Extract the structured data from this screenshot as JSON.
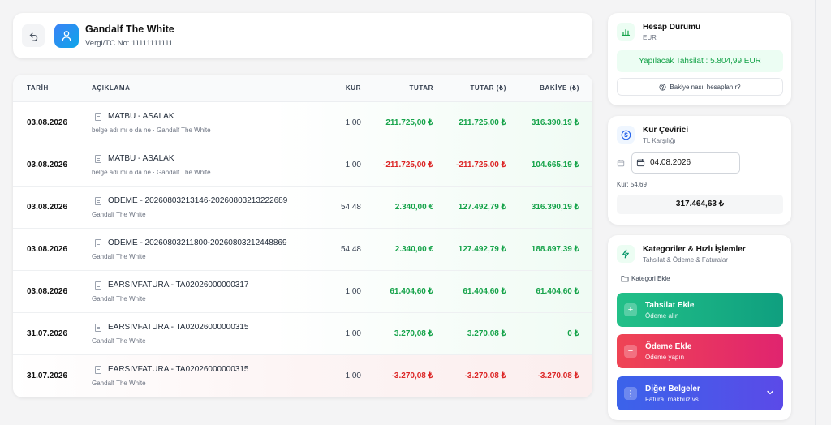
{
  "customer": {
    "name": "Gandalf The White",
    "tax_label": "Vergi/TC No: 11111111111"
  },
  "table": {
    "headers": [
      "TARİH",
      "AÇIKLAMA",
      "KUR",
      "TUTAR",
      "TUTAR (₺)",
      "BAKİYE (₺)"
    ],
    "rows": [
      {
        "date": "03.08.2026",
        "title": "MATBU - ASALAK",
        "sub": "belge adı mı o da ne · Gandalf The White",
        "kur": "1,00",
        "tutar": "211.725,00 ₺",
        "tutar_tl": "211.725,00 ₺",
        "bakiye": "316.390,19 ₺",
        "sign": "pos",
        "bakiye_sign": "pos"
      },
      {
        "date": "03.08.2026",
        "title": "MATBU - ASALAK",
        "sub": "belge adı mı o da ne · Gandalf The White",
        "kur": "1,00",
        "tutar": "-211.725,00 ₺",
        "tutar_tl": "-211.725,00 ₺",
        "bakiye": "104.665,19 ₺",
        "sign": "neg",
        "bakiye_sign": "pos"
      },
      {
        "date": "03.08.2026",
        "title": "ODEME - 20260803213146-20260803213222689",
        "sub": "Gandalf The White",
        "kur": "54,48",
        "tutar": "2.340,00 €",
        "tutar_tl": "127.492,79 ₺",
        "bakiye": "316.390,19 ₺",
        "sign": "pos",
        "bakiye_sign": "pos"
      },
      {
        "date": "03.08.2026",
        "title": "ODEME - 20260803211800-20260803212448869",
        "sub": "Gandalf The White",
        "kur": "54,48",
        "tutar": "2.340,00 €",
        "tutar_tl": "127.492,79 ₺",
        "bakiye": "188.897,39 ₺",
        "sign": "pos",
        "bakiye_sign": "pos"
      },
      {
        "date": "03.08.2026",
        "title": "EARSIVFATURA - TA02026000000317",
        "sub": "Gandalf The White",
        "kur": "1,00",
        "tutar": "61.404,60 ₺",
        "tutar_tl": "61.404,60 ₺",
        "bakiye": "61.404,60 ₺",
        "sign": "pos",
        "bakiye_sign": "pos"
      },
      {
        "date": "31.07.2026",
        "title": "EARSIVFATURA - TA02026000000315",
        "sub": "Gandalf The White",
        "kur": "1,00",
        "tutar": "3.270,08 ₺",
        "tutar_tl": "3.270,08 ₺",
        "bakiye": "0 ₺",
        "sign": "pos",
        "bakiye_sign": "pos"
      },
      {
        "date": "31.07.2026",
        "title": "EARSIVFATURA - TA02026000000315",
        "sub": "Gandalf The White",
        "kur": "1,00",
        "tutar": "-3.270,08 ₺",
        "tutar_tl": "-3.270,08 ₺",
        "bakiye": "-3.270,08 ₺",
        "sign": "neg",
        "bakiye_sign": "neg"
      }
    ]
  },
  "account": {
    "title": "Hesap Durumu",
    "currency": "EUR",
    "tahsilat": "Yapılacak Tahsilat : 5.804,99 EUR",
    "how_label": "Bakiye nasıl hesaplanır?"
  },
  "converter": {
    "title": "Kur Çevirici",
    "subtitle": "TL Karşılığı",
    "date": "04.08.2026",
    "rate": "Kur: 54,69",
    "result": "317.464,63 ₺"
  },
  "categories": {
    "title": "Kategoriler & Hızlı İşlemler",
    "subtitle": "Tahsilat & Ödeme & Faturalar",
    "add_label": "Kategori Ekle",
    "actions": [
      {
        "title": "Tahsilat Ekle",
        "sub": "Ödeme alın"
      },
      {
        "title": "Ödeme Ekle",
        "sub": "Ödeme yapın"
      },
      {
        "title": "Diğer Belgeler",
        "sub": "Fatura, makbuz vs."
      }
    ]
  },
  "colors": {
    "positive": "#16a34a",
    "negative": "#dc2626",
    "green_btn": "#10b981",
    "red_btn": "#e11d48",
    "blue_btn": "#4f46e5"
  }
}
